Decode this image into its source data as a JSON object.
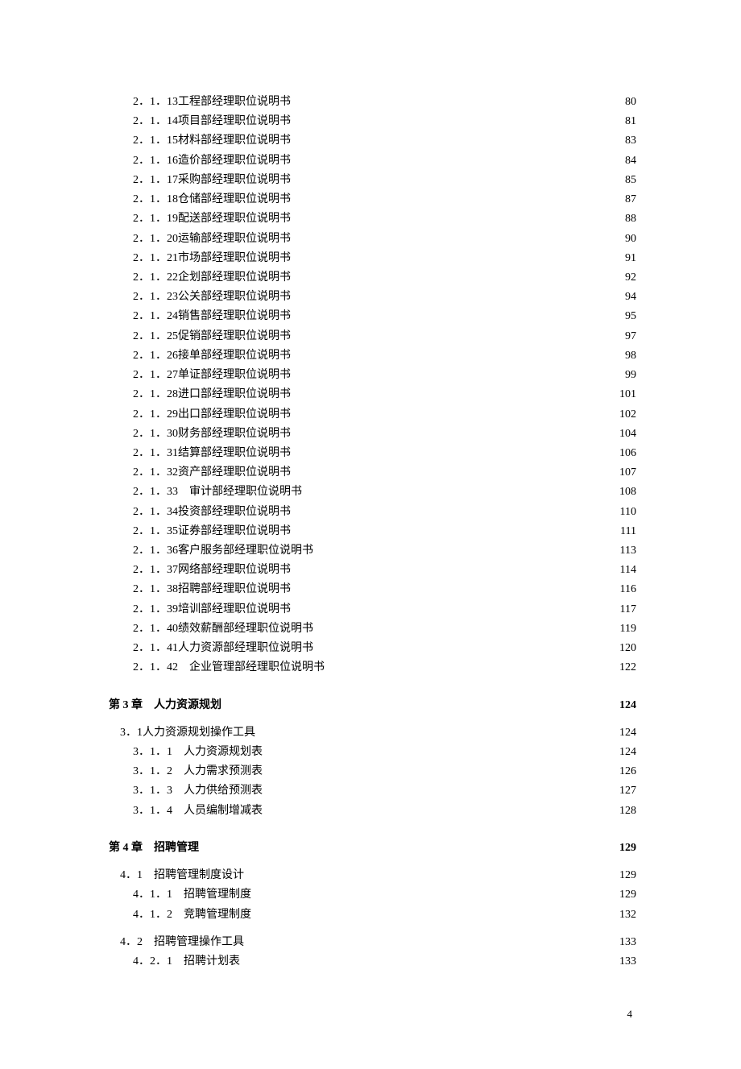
{
  "entries": [
    {
      "level": 3,
      "number": "2．1．13",
      "title": " 工程部经理职位说明书",
      "page": "80"
    },
    {
      "level": 3,
      "number": "2．1．14",
      "title": " 项目部经理职位说明书",
      "page": "81"
    },
    {
      "level": 3,
      "number": "2．1．15",
      "title": " 材料部经理职位说明书",
      "page": "83"
    },
    {
      "level": 3,
      "number": "2．1．16",
      "title": " 造价部经理职位说明书",
      "page": "84"
    },
    {
      "level": 3,
      "number": "2．1．17",
      "title": " 采购部经理职位说明书",
      "page": "85"
    },
    {
      "level": 3,
      "number": "2．1．18",
      "title": " 仓储部经理职位说明书",
      "page": "87"
    },
    {
      "level": 3,
      "number": "2．1．19",
      "title": " 配送部经理职位说明书",
      "page": "88"
    },
    {
      "level": 3,
      "number": "2．1．20",
      "title": " 运输部经理职位说明书",
      "page": "90"
    },
    {
      "level": 3,
      "number": "2．1．21",
      "title": " 市场部经理职位说明书",
      "page": "91"
    },
    {
      "level": 3,
      "number": "2．1．22",
      "title": " 企划部经理职位说明书",
      "page": "92"
    },
    {
      "level": 3,
      "number": "2．1．23",
      "title": " 公关部经理职位说明书",
      "page": "94"
    },
    {
      "level": 3,
      "number": "2．1．24",
      "title": " 销售部经理职位说明书",
      "page": "95"
    },
    {
      "level": 3,
      "number": "2．1．25",
      "title": " 促销部经理职位说明书",
      "page": "97"
    },
    {
      "level": 3,
      "number": "2．1．26",
      "title": " 接单部经理职位说明书",
      "page": "98"
    },
    {
      "level": 3,
      "number": "2．1．27",
      "title": " 单证部经理职位说明书",
      "page": "99"
    },
    {
      "level": 3,
      "number": "2．1．28",
      "title": " 进口部经理职位说明书",
      "page": "101"
    },
    {
      "level": 3,
      "number": "2．1．29",
      "title": " 出口部经理职位说明书",
      "page": "102"
    },
    {
      "level": 3,
      "number": "2．1．30",
      "title": " 财务部经理职位说明书",
      "page": "104"
    },
    {
      "level": 3,
      "number": "2．1．31",
      "title": " 结算部经理职位说明书",
      "page": "106"
    },
    {
      "level": 3,
      "number": "2．1．32",
      "title": " 资产部经理职位说明书",
      "page": "107"
    },
    {
      "level": 3,
      "number": "2．1．33",
      "title": "　审计部经理职位说明书",
      "page": "108"
    },
    {
      "level": 3,
      "number": "2．1．34",
      "title": " 投资部经理职位说明书",
      "page": "110"
    },
    {
      "level": 3,
      "number": "2．1．35",
      "title": " 证券部经理职位说明书",
      "page": "111"
    },
    {
      "level": 3,
      "number": "2．1．36",
      "title": " 客户服务部经理职位说明书",
      "page": "113"
    },
    {
      "level": 3,
      "number": "2．1．37",
      "title": " 网络部经理职位说明书",
      "page": "114"
    },
    {
      "level": 3,
      "number": "2．1．38",
      "title": " 招聘部经理职位说明书",
      "page": "116"
    },
    {
      "level": 3,
      "number": "2．1．39",
      "title": " 培训部经理职位说明书",
      "page": "117"
    },
    {
      "level": 3,
      "number": "2．1．40",
      "title": " 绩效薪酬部经理职位说明书",
      "page": "119"
    },
    {
      "level": 3,
      "number": "2．1．41",
      "title": " 人力资源部经理职位说明书",
      "page": "120"
    },
    {
      "level": 3,
      "number": "2．1．42",
      "title": "　企业管理部经理职位说明书",
      "page": "122"
    },
    {
      "level": 1,
      "number": "第 3 章",
      "title": "　人力资源规划 ",
      "page": "124"
    },
    {
      "level": 2,
      "number": "3．1",
      "title": " 人力资源规划操作工具",
      "page": "124",
      "section": true
    },
    {
      "level": 3,
      "number": "3．1．1",
      "title": "　人力资源规划表",
      "page": "124"
    },
    {
      "level": 3,
      "number": "3．1．2",
      "title": "　人力需求预测表",
      "page": "126"
    },
    {
      "level": 3,
      "number": "3．1．3",
      "title": "　人力供给预测表",
      "page": "127"
    },
    {
      "level": 3,
      "number": "3．1．4",
      "title": "　人员编制增减表",
      "page": "128"
    },
    {
      "level": 1,
      "number": "第 4 章",
      "title": "　招聘管理 ",
      "page": "129"
    },
    {
      "level": 2,
      "number": "4．1",
      "title": "　招聘管理制度设计",
      "page": "129",
      "section": true
    },
    {
      "level": 3,
      "number": "4．1．1",
      "title": "　招聘管理制度",
      "page": "129"
    },
    {
      "level": 3,
      "number": "4．1．2",
      "title": "　竞聘管理制度",
      "page": "132"
    },
    {
      "level": 2,
      "number": "4．2",
      "title": "　招聘管理操作工具",
      "page": "133",
      "section": true
    },
    {
      "level": 3,
      "number": "4．2．1",
      "title": "　招聘计划表",
      "page": "133"
    }
  ],
  "pageNumber": "4"
}
